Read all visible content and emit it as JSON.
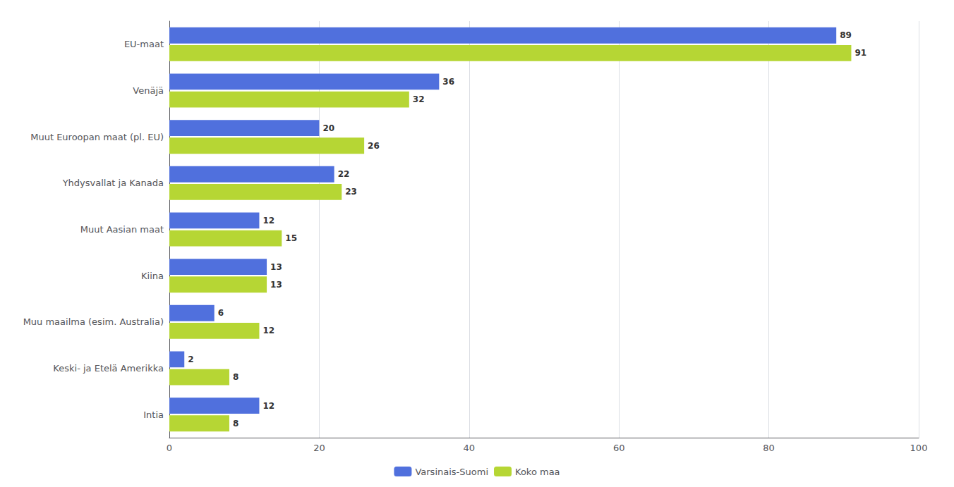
{
  "chart_data": {
    "type": "bar",
    "orientation": "horizontal",
    "categories": [
      "EU-maat",
      "Venäjä",
      "Muut Euroopan maat (pl. EU)",
      "Yhdysvallat ja Kanada",
      "Muut Aasian maat",
      "Kiina",
      "Muu maailma (esim. Australia)",
      "Keski- ja Etelä Amerikka",
      "Intia"
    ],
    "series": [
      {
        "name": "Varsinais-Suomi",
        "values": [
          89,
          36,
          20,
          22,
          12,
          13,
          6,
          2,
          12
        ]
      },
      {
        "name": "Koko maa",
        "values": [
          91,
          32,
          26,
          23,
          15,
          13,
          12,
          8,
          8
        ]
      }
    ],
    "xlim": [
      0,
      100
    ],
    "xticks": [
      0,
      20,
      40,
      60,
      80,
      100
    ],
    "grid": true,
    "legend": "bottom",
    "data_labels": true
  }
}
